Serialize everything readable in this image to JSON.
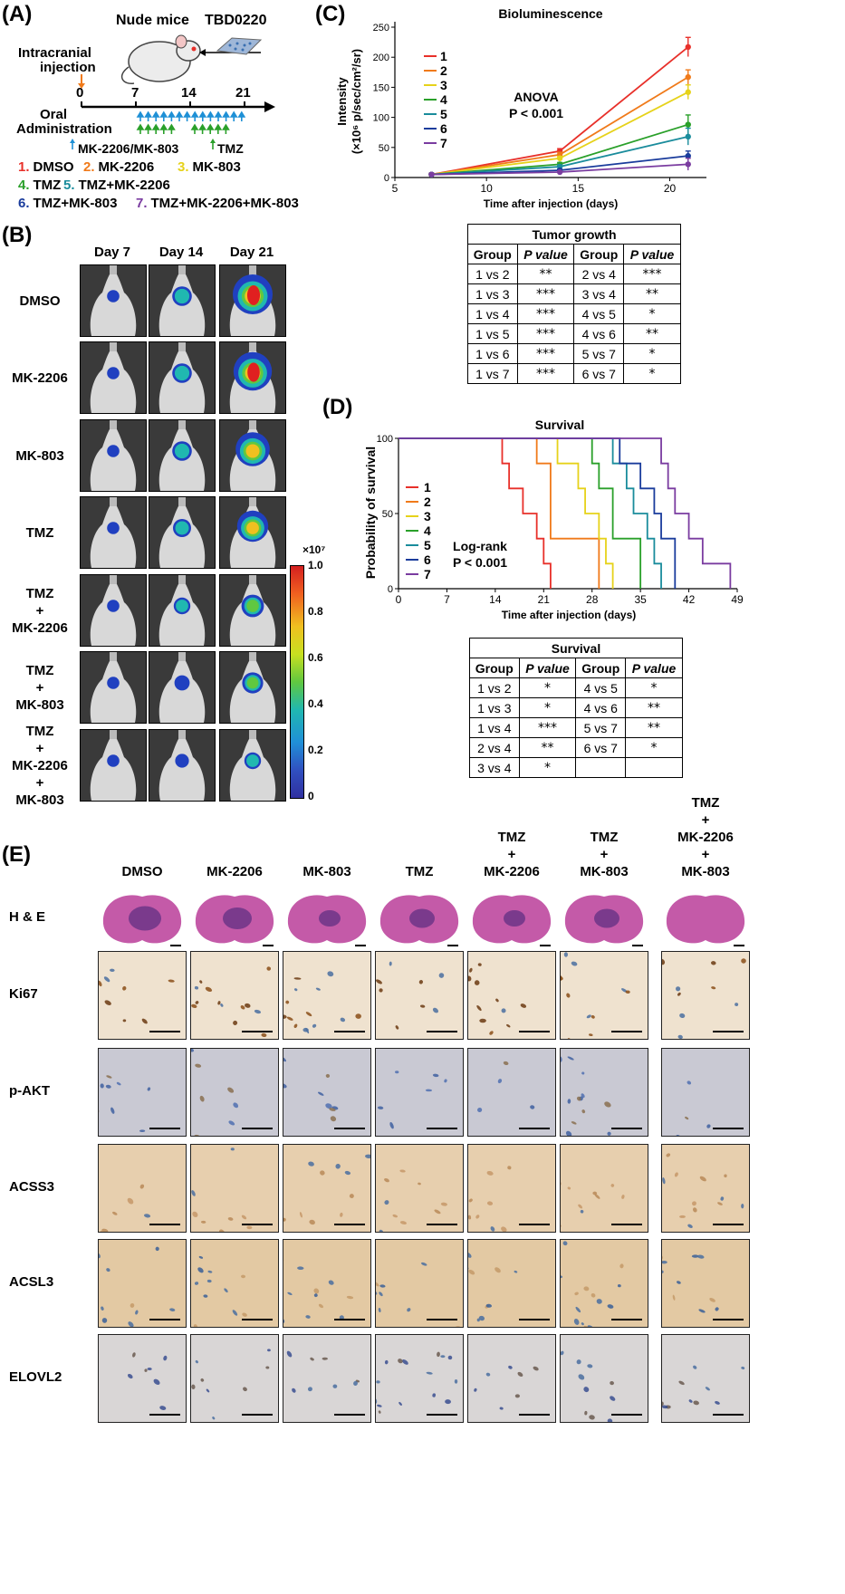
{
  "panelA": {
    "letter": "(A)",
    "nude_mice": "Nude mice",
    "cell_line": "TBD0220",
    "injection_label_1": "Intracranial",
    "injection_label_2": "injection",
    "timeline_ticks": [
      "0",
      "7",
      "14",
      "21"
    ],
    "oral_1": "Oral",
    "oral_2": "Administration",
    "legend_mk": "MK-2206/MK-803",
    "legend_tmz": "TMZ",
    "groups": [
      {
        "num": "1.",
        "name": "DMSO",
        "color": "#e8302a"
      },
      {
        "num": "2.",
        "name": "MK-2206",
        "color": "#f07a1a"
      },
      {
        "num": "3.",
        "name": "MK-803",
        "color": "#e6d21a"
      },
      {
        "num": "4.",
        "name": "TMZ",
        "color": "#2aa02a"
      },
      {
        "num": "5.",
        "name": "TMZ+MK-2206",
        "color": "#1a8c9c"
      },
      {
        "num": "6.",
        "name": "TMZ+MK-803",
        "color": "#1a3c9c"
      },
      {
        "num": "7.",
        "name": "TMZ+MK-2206+MK-803",
        "color": "#7a3ca0"
      }
    ]
  },
  "panelB": {
    "letter": "(B)",
    "days": [
      "Day 7",
      "Day 14",
      "Day 21"
    ],
    "rows": [
      {
        "label": [
          "DMSO"
        ]
      },
      {
        "label": [
          "MK-2206"
        ]
      },
      {
        "label": [
          "MK-803"
        ]
      },
      {
        "label": [
          "TMZ"
        ]
      },
      {
        "label": [
          "TMZ",
          "+",
          "MK-2206"
        ]
      },
      {
        "label": [
          "TMZ",
          "+",
          "MK-803"
        ]
      },
      {
        "label": [
          "TMZ",
          "+",
          "MK-2206",
          "+",
          "MK-803"
        ]
      }
    ],
    "signal_levels": [
      [
        0.05,
        0.3,
        1.0
      ],
      [
        0.05,
        0.3,
        0.95
      ],
      [
        0.05,
        0.3,
        0.8
      ],
      [
        0.05,
        0.25,
        0.7
      ],
      [
        0.05,
        0.2,
        0.4
      ],
      [
        0.05,
        0.15,
        0.35
      ],
      [
        0.05,
        0.1,
        0.2
      ]
    ],
    "colorbar_unit": "×10⁷",
    "colorbar_ticks": [
      "1.0",
      "0.8",
      "0.6",
      "0.4",
      "0.2",
      "0"
    ]
  },
  "panelC": {
    "letter": "(C)",
    "chart_data": {
      "type": "line",
      "title": "Bioluminescence",
      "xlabel": "Time after injection (days)",
      "ylabel_1": "Intensity",
      "ylabel_2": "(×10⁶ p/sec/cm²/sr)",
      "xlim": [
        5,
        22
      ],
      "ylim": [
        0,
        250
      ],
      "xticks": [
        "5",
        "10",
        "15",
        "20"
      ],
      "yticks": [
        "0",
        "50",
        "100",
        "150",
        "200",
        "250"
      ],
      "x": [
        7,
        14,
        21
      ],
      "annotation_1": "ANOVA",
      "annotation_2": "P < 0.001",
      "series": [
        {
          "name": "1",
          "color": "#e8302a",
          "values": [
            5,
            44,
            217
          ],
          "err": [
            2,
            4,
            16
          ]
        },
        {
          "name": "2",
          "color": "#f07a1a",
          "values": [
            5,
            38,
            167
          ],
          "err": [
            2,
            4,
            12
          ]
        },
        {
          "name": "3",
          "color": "#e6d21a",
          "values": [
            5,
            32,
            142
          ],
          "err": [
            2,
            3,
            12
          ]
        },
        {
          "name": "4",
          "color": "#2aa02a",
          "values": [
            5,
            22,
            88
          ],
          "err": [
            2,
            3,
            16
          ]
        },
        {
          "name": "5",
          "color": "#1a8c9c",
          "values": [
            5,
            18,
            68
          ],
          "err": [
            2,
            3,
            14
          ]
        },
        {
          "name": "6",
          "color": "#1a3c9c",
          "values": [
            5,
            12,
            36
          ],
          "err": [
            2,
            2,
            8
          ]
        },
        {
          "name": "7",
          "color": "#7a3ca0",
          "values": [
            5,
            9,
            22
          ],
          "err": [
            2,
            2,
            10
          ]
        }
      ]
    },
    "table_title": "Tumor growth",
    "table_headers": [
      "Group",
      "P value",
      "Group",
      "P value"
    ],
    "table_rows": [
      [
        "1 vs 2",
        "**",
        "2 vs 4",
        "***"
      ],
      [
        "1 vs 3",
        "***",
        "3 vs 4",
        "**"
      ],
      [
        "1 vs 4",
        "***",
        "4 vs 5",
        "*"
      ],
      [
        "1 vs 5",
        "***",
        "4 vs 6",
        "**"
      ],
      [
        "1 vs 6",
        "***",
        "5 vs 7",
        "*"
      ],
      [
        "1 vs 7",
        "***",
        "6 vs 7",
        "*"
      ]
    ]
  },
  "panelD": {
    "letter": "(D)",
    "chart_data": {
      "type": "line",
      "title": "Survival",
      "xlabel": "Time after injection (days)",
      "ylabel": "Probability of survival",
      "xlim": [
        0,
        49
      ],
      "ylim": [
        0,
        100
      ],
      "xticks": [
        "0",
        "7",
        "14",
        "21",
        "28",
        "35",
        "42",
        "49"
      ],
      "yticks": [
        "0",
        "50",
        "100"
      ],
      "annotation_1": "Log-rank",
      "annotation_2": "P < 0.001",
      "series": [
        {
          "name": "1",
          "color": "#e8302a",
          "deaths": [
            15,
            16,
            18,
            20,
            21,
            22
          ]
        },
        {
          "name": "2",
          "color": "#f07a1a",
          "deaths": [
            20,
            22,
            22,
            22,
            29,
            29
          ]
        },
        {
          "name": "3",
          "color": "#e6d21a",
          "deaths": [
            23,
            26,
            27,
            29,
            30,
            31
          ]
        },
        {
          "name": "4",
          "color": "#2aa02a",
          "deaths": [
            28,
            29,
            31,
            31,
            35,
            35
          ]
        },
        {
          "name": "5",
          "color": "#1a8c9c",
          "deaths": [
            31,
            33,
            34,
            36,
            37,
            38
          ]
        },
        {
          "name": "6",
          "color": "#1a3c9c",
          "deaths": [
            32,
            35,
            37,
            38,
            40,
            40
          ]
        },
        {
          "name": "7",
          "color": "#7a3ca0",
          "deaths": [
            38,
            39,
            40,
            42,
            44,
            48
          ]
        }
      ]
    },
    "table_title": "Survival",
    "table_headers": [
      "Group",
      "P value",
      "Group",
      "P value"
    ],
    "table_rows": [
      [
        "1 vs 2",
        "*",
        "4 vs 5",
        "*"
      ],
      [
        "1 vs 3",
        "*",
        "4 vs 6",
        "**"
      ],
      [
        "1 vs 4",
        "***",
        "5 vs 7",
        "**"
      ],
      [
        "2 vs 4",
        "**",
        "6 vs 7",
        "*"
      ],
      [
        "3 vs 4",
        "*",
        "",
        ""
      ]
    ]
  },
  "panelE": {
    "letter": "(E)",
    "columns": [
      [
        "DMSO"
      ],
      [
        "MK-2206"
      ],
      [
        "MK-803"
      ],
      [
        "TMZ"
      ],
      [
        "TMZ",
        "+",
        "MK-2206"
      ],
      [
        "TMZ",
        "+",
        "MK-803"
      ],
      [
        "TMZ",
        "+",
        "MK-2206",
        "+",
        "MK-803"
      ]
    ],
    "rows": [
      "H & E",
      "Ki67",
      "p-AKT",
      "ACSS3",
      "ACSL3",
      "ELOVL2"
    ]
  }
}
